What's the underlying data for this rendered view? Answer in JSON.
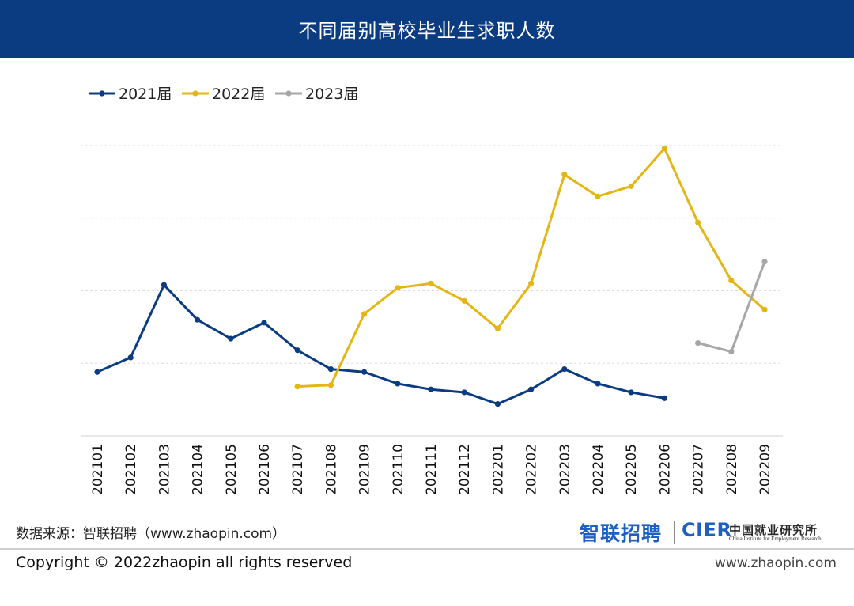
{
  "header": {
    "title": "不同届别高校毕业生求职人数"
  },
  "chart_data": {
    "type": "line",
    "title": "不同届别高校毕业生求职人数",
    "xlabel": "",
    "ylabel": "",
    "categories": [
      "202101",
      "202102",
      "202103",
      "202104",
      "202105",
      "202106",
      "202107",
      "202108",
      "202109",
      "202110",
      "202111",
      "202112",
      "202201",
      "202202",
      "202203",
      "202204",
      "202205",
      "202206",
      "202207",
      "202208",
      "202209"
    ],
    "ylim": [
      0,
      100
    ],
    "grid": true,
    "legend_position": "top-left",
    "series": [
      {
        "name": "2021届",
        "color": "#0b3c82",
        "values": [
          22,
          27,
          52,
          40,
          33.5,
          39,
          29.5,
          23,
          22,
          18,
          16,
          15,
          11,
          16,
          23,
          18,
          15,
          13,
          null,
          null,
          null
        ]
      },
      {
        "name": "2022届",
        "color": "#e3b614",
        "values": [
          null,
          null,
          null,
          null,
          null,
          null,
          17,
          17.5,
          42,
          51,
          52.5,
          46.5,
          37,
          52.5,
          90,
          82.5,
          86,
          99,
          73.5,
          53.5,
          43.5
        ]
      },
      {
        "name": "2023届",
        "color": "#a6a6a6",
        "values": [
          null,
          null,
          null,
          null,
          null,
          null,
          null,
          null,
          null,
          null,
          null,
          null,
          null,
          null,
          null,
          null,
          null,
          null,
          32,
          29,
          60
        ]
      }
    ]
  },
  "footer": {
    "source": "数据来源：智联招聘（www.zhaopin.com）",
    "logo_zhaopin": "智联招聘",
    "logo_cier": "CIER",
    "logo_cier_cn": "中国就业研究所",
    "logo_cier_en": "China Institute for Employment Research",
    "copyright": "Copyright ©  2022zhaopin all rights reserved",
    "site": "www.zhaopin.com"
  }
}
